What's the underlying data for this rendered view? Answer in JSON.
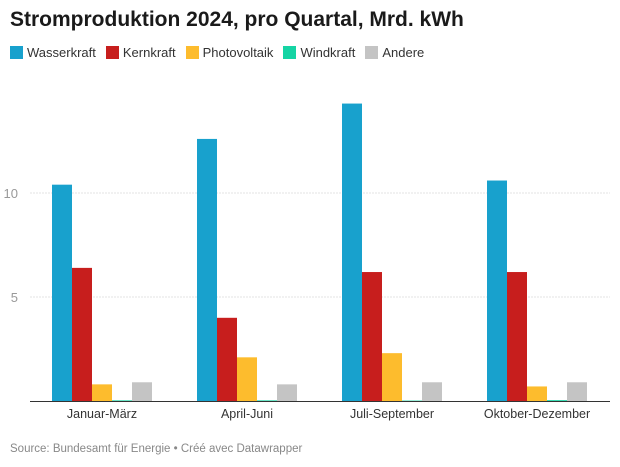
{
  "chart_data": {
    "type": "bar",
    "title": "Stromproduktion 2024, pro Quartal, Mrd. kWh",
    "categories": [
      "Januar-März",
      "April-Juni",
      "Juli-September",
      "Oktober-Dezember"
    ],
    "series": [
      {
        "name": "Wasserkraft",
        "color": "#18a1cd",
        "values": [
          10.4,
          12.6,
          14.3,
          10.6
        ]
      },
      {
        "name": "Kernkraft",
        "color": "#c71e1d",
        "values": [
          6.4,
          4.0,
          6.2,
          6.2
        ]
      },
      {
        "name": "Photovoltaik",
        "color": "#fdbc2d",
        "values": [
          0.8,
          2.1,
          2.3,
          0.7
        ]
      },
      {
        "name": "Windkraft",
        "color": "#15d4a4",
        "values": [
          0.03,
          0.03,
          0.02,
          0.04
        ]
      },
      {
        "name": "Andere",
        "color": "#c4c4c4",
        "values": [
          0.9,
          0.8,
          0.9,
          0.9
        ]
      }
    ],
    "yticks": [
      5,
      10
    ],
    "ylim": [
      0,
      15
    ],
    "grid": true,
    "legend": "top-left",
    "xlabel": "",
    "ylabel": ""
  },
  "source": "Source: Bundesamt für Energie • Créé avec Datawrapper"
}
